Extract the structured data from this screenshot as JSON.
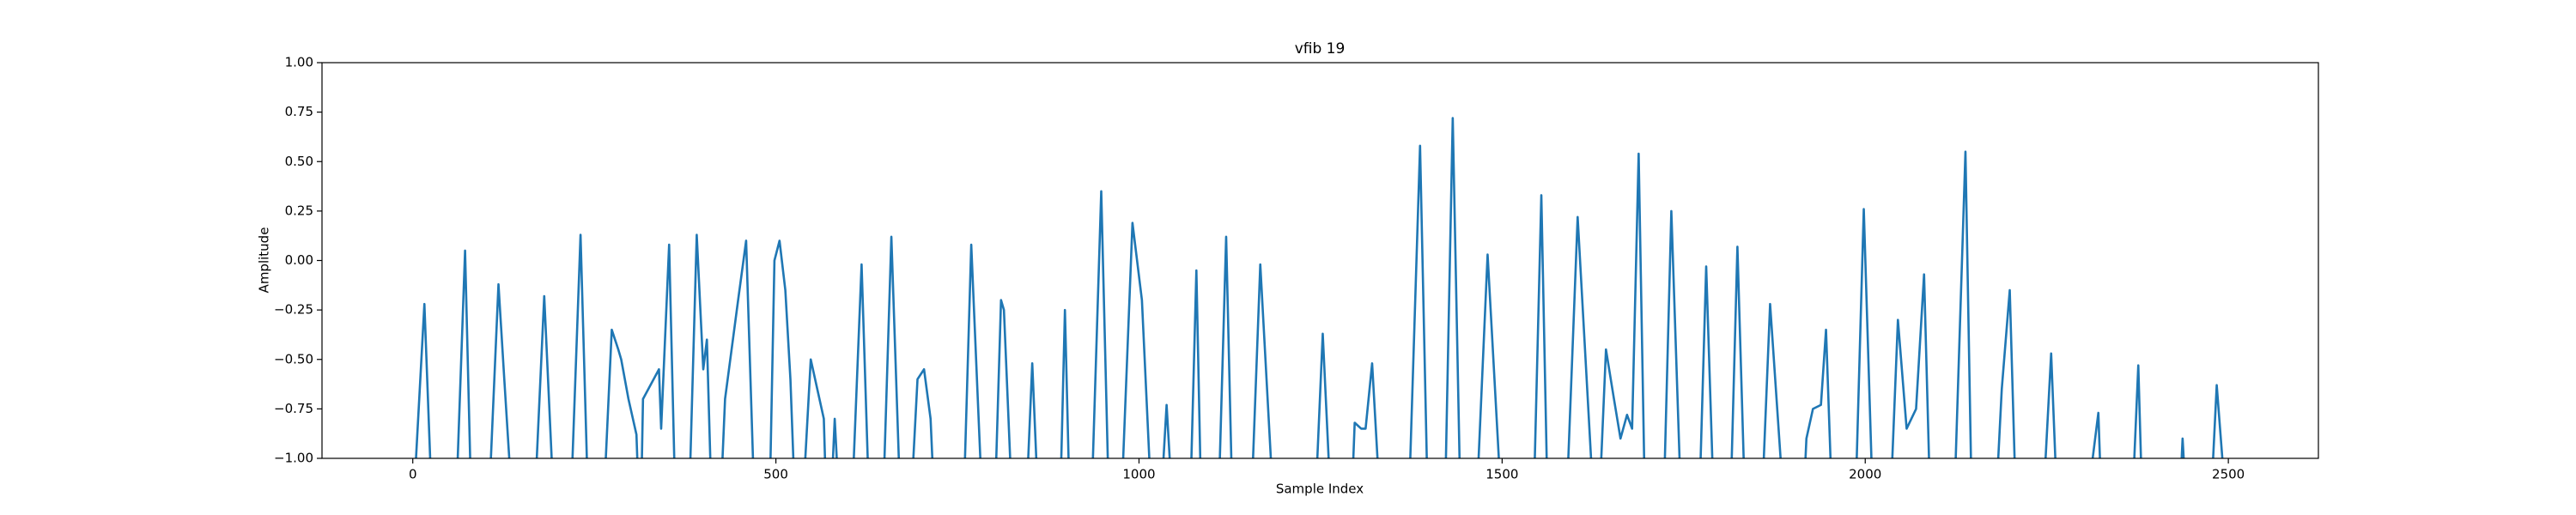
{
  "chart_data": {
    "type": "line",
    "title": "vfib 19",
    "xlabel": "Sample Index",
    "ylabel": "Amplitude",
    "color": "#1f77b4",
    "x": [
      0,
      16,
      27,
      59,
      72,
      81,
      104,
      118,
      126,
      138,
      167,
      181,
      195,
      217,
      231,
      242,
      262,
      274,
      283,
      287,
      297,
      308,
      312,
      314,
      317,
      339,
      342,
      353,
      362,
      380,
      391,
      400,
      405,
      412,
      423,
      430,
      439,
      448,
      459,
      471,
      491,
      498,
      505,
      513,
      520,
      527,
      536,
      548,
      557,
      566,
      570,
      575,
      581,
      588,
      604,
      618,
      629,
      647,
      659,
      672,
      685,
      695,
      704,
      713,
      719,
      758,
      769,
      778,
      785,
      801,
      810,
      814,
      826,
      844,
      853,
      862,
      891,
      898,
      905,
      934,
      948,
      959,
      975,
      991,
      1004,
      1018,
      1029,
      1038,
      1047,
      1070,
      1079,
      1086,
      1109,
      1120,
      1129,
      1154,
      1167,
      1186,
      1242,
      1253,
      1265,
      1292,
      1297,
      1306,
      1312,
      1321,
      1333,
      1371,
      1387,
      1398,
      1421,
      1432,
      1443,
      1464,
      1480,
      1500,
      1543,
      1554,
      1563,
      1588,
      1604,
      1627,
      1633,
      1643,
      1654,
      1663,
      1672,
      1679,
      1688,
      1697,
      1722,
      1733,
      1747,
      1771,
      1781,
      1792,
      1814,
      1824,
      1835,
      1857,
      1869,
      1889,
      1914,
      1919,
      1928,
      1939,
      1946,
      1955,
      1986,
      1998,
      2011,
      2034,
      2045,
      2057,
      2070,
      2081,
      2090,
      2122,
      2138,
      2147,
      2179,
      2188,
      2199,
      2208,
      2244,
      2256,
      2265,
      2303,
      2321,
      2326,
      2367,
      2376,
      2382,
      2432,
      2437,
      2443,
      2475,
      2484,
      2498
    ],
    "values": [
      -1.3,
      -0.22,
      -1.3,
      -1.3,
      0.05,
      -1.3,
      -1.3,
      -0.12,
      -0.6,
      -1.3,
      -1.3,
      -0.18,
      -1.3,
      -1.3,
      0.13,
      -1.3,
      -1.3,
      -0.35,
      -0.45,
      -0.5,
      -0.7,
      -0.88,
      -1.3,
      -1.3,
      -0.7,
      -0.55,
      -0.85,
      0.08,
      -1.3,
      -1.3,
      0.13,
      -0.55,
      -0.4,
      -1.3,
      -1.3,
      -0.7,
      -0.45,
      -0.2,
      0.1,
      -1.3,
      -1.3,
      0.0,
      0.1,
      -0.15,
      -0.6,
      -1.3,
      -1.3,
      -0.5,
      -0.65,
      -0.8,
      -1.3,
      -1.3,
      -0.8,
      -1.3,
      -1.3,
      -0.02,
      -1.3,
      -1.3,
      0.12,
      -1.3,
      -1.3,
      -0.6,
      -0.55,
      -0.8,
      -1.3,
      -1.3,
      0.08,
      -0.7,
      -1.3,
      -1.3,
      -0.2,
      -0.25,
      -1.3,
      -1.3,
      -0.52,
      -1.3,
      -1.3,
      -0.25,
      -1.3,
      -1.3,
      0.35,
      -1.3,
      -1.3,
      0.19,
      -0.2,
      -1.3,
      -1.3,
      -0.73,
      -1.3,
      -1.3,
      -0.05,
      -1.3,
      -1.3,
      0.12,
      -1.3,
      -1.3,
      -0.02,
      -1.3,
      -1.3,
      -0.37,
      -1.3,
      -1.3,
      -0.82,
      -0.85,
      -0.85,
      -0.52,
      -1.3,
      -1.3,
      0.58,
      -1.3,
      -1.3,
      0.72,
      -1.3,
      -1.3,
      0.03,
      -1.3,
      -1.3,
      0.33,
      -1.3,
      -1.3,
      0.22,
      -1.3,
      -1.3,
      -0.45,
      -0.7,
      -0.9,
      -0.78,
      -0.85,
      0.54,
      -1.3,
      -1.3,
      0.25,
      -1.3,
      -1.3,
      -0.03,
      -1.3,
      -1.3,
      0.07,
      -1.3,
      -1.3,
      -0.22,
      -1.3,
      -1.3,
      -0.9,
      -0.75,
      -0.73,
      -0.35,
      -1.3,
      -1.3,
      0.26,
      -1.3,
      -1.3,
      -0.3,
      -0.85,
      -0.75,
      -0.07,
      -1.3,
      -1.3,
      0.55,
      -1.3,
      -1.3,
      -0.65,
      -0.15,
      -1.3,
      -1.3,
      -0.47,
      -1.3,
      -1.3,
      -0.77,
      -1.3,
      -1.3,
      -0.53,
      -1.3,
      -1.3,
      -0.9,
      -1.3,
      -1.3,
      -0.63,
      -1.3
    ],
    "xlim": [
      -125,
      2624
    ],
    "ylim": [
      -1,
      1
    ],
    "xticks": [
      0,
      500,
      1000,
      1500,
      2000,
      2500
    ],
    "yticks": [
      {
        "value": -1,
        "label": "−1.00"
      },
      {
        "value": -0.75,
        "label": "−0.75"
      },
      {
        "value": -0.5,
        "label": "−0.50"
      },
      {
        "value": -0.25,
        "label": "−0.25"
      },
      {
        "value": 0,
        "label": "0.00"
      },
      {
        "value": 0.25,
        "label": "0.25"
      },
      {
        "value": 0.5,
        "label": "0.50"
      },
      {
        "value": 0.75,
        "label": "0.75"
      },
      {
        "value": 1,
        "label": "1.00"
      }
    ],
    "grid": false
  }
}
